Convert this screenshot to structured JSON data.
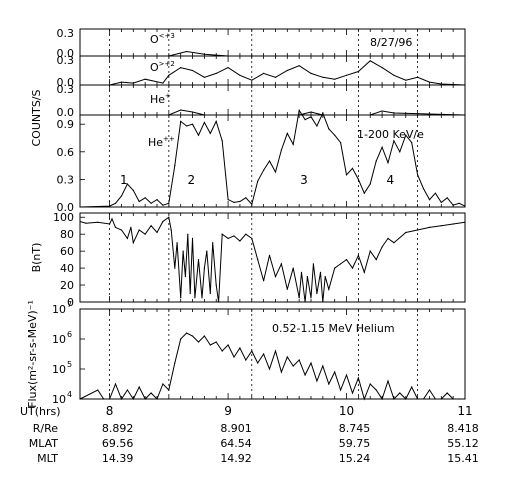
{
  "chart_data": {
    "type": "line",
    "date_label": "8/27/96",
    "x_axis": {
      "label": "UT(hrs)",
      "range": [
        7.75,
        11.0
      ],
      "ticks": [
        "8",
        "9",
        "10",
        "11"
      ],
      "tick_values": [
        8,
        9,
        10,
        11
      ]
    },
    "event_lines_ut": [
      8.0,
      8.5,
      9.2,
      10.1,
      10.6
    ],
    "panels": [
      {
        "id": "oxygen3",
        "species": "O",
        "species_sup": "<+3",
        "ylim": [
          0,
          0.3
        ],
        "y_ticks": [
          "0.3",
          "0.0"
        ],
        "series": [
          {
            "x": [
              7.75,
              8.5,
              8.65,
              8.8,
              9.0,
              11.0
            ],
            "y": [
              0,
              0,
              0.05,
              0.02,
              0,
              0
            ]
          }
        ]
      },
      {
        "id": "oxygen2",
        "species": "O",
        "species_sup": ">+2",
        "ylim": [
          0,
          0.3
        ],
        "y_ticks": [
          "0.3",
          "0.0"
        ],
        "series": [
          {
            "x": [
              7.75,
              8.0,
              8.1,
              8.2,
              8.3,
              8.45,
              8.5,
              8.6,
              8.7,
              8.8,
              8.9,
              9.0,
              9.1,
              9.2,
              9.3,
              9.4,
              9.5,
              9.6,
              9.7,
              9.8,
              9.9,
              10.0,
              10.1,
              10.2,
              10.3,
              10.4,
              10.5,
              10.6,
              10.7,
              10.8,
              11.0
            ],
            "y": [
              0,
              0,
              0.03,
              0.02,
              0.06,
              0.02,
              0.1,
              0.18,
              0.15,
              0.08,
              0.12,
              0.18,
              0.1,
              0.05,
              0.12,
              0.08,
              0.15,
              0.2,
              0.12,
              0.08,
              0.06,
              0.1,
              0.14,
              0.25,
              0.18,
              0.1,
              0.05,
              0.08,
              0.03,
              0.01,
              0
            ]
          }
        ]
      },
      {
        "id": "he1",
        "species": "He",
        "species_sup": "+",
        "ylim": [
          0,
          0.3
        ],
        "y_ticks": [
          "0.3",
          "0.0"
        ],
        "series": [
          {
            "x": [
              7.75,
              8.5,
              8.6,
              8.7,
              8.8,
              9.6,
              9.7,
              9.8,
              10.2,
              10.3,
              10.4,
              11.0
            ],
            "y": [
              0,
              0,
              0.05,
              0.03,
              0,
              0,
              0.03,
              0,
              0,
              0.04,
              0.02,
              0
            ]
          }
        ]
      },
      {
        "id": "he2",
        "species": "He",
        "species_sup": "++",
        "ylim": [
          0,
          1.0
        ],
        "y_ticks": [
          "0.9",
          "0.6",
          "0.3",
          "0.0"
        ],
        "y_tick_values": [
          0.9,
          0.6,
          0.3,
          0.0
        ],
        "energy_label": "1-200 KeV/e",
        "event_numbers": [
          "1",
          "2",
          "3",
          "4"
        ],
        "event_number_x": [
          8.12,
          8.69,
          9.64,
          10.37
        ],
        "series": [
          {
            "x": [
              7.75,
              8.0,
              8.05,
              8.1,
              8.15,
              8.2,
              8.25,
              8.3,
              8.35,
              8.4,
              8.45,
              8.5,
              8.55,
              8.6,
              8.65,
              8.7,
              8.75,
              8.8,
              8.85,
              8.9,
              8.95,
              9.0,
              9.05,
              9.1,
              9.15,
              9.2,
              9.25,
              9.3,
              9.35,
              9.4,
              9.45,
              9.5,
              9.55,
              9.6,
              9.65,
              9.7,
              9.75,
              9.8,
              9.85,
              9.9,
              9.95,
              10.0,
              10.05,
              10.1,
              10.15,
              10.2,
              10.25,
              10.3,
              10.35,
              10.4,
              10.45,
              10.5,
              10.55,
              10.6,
              10.65,
              10.7,
              10.75,
              10.8,
              10.85,
              10.9,
              10.95,
              11.0
            ],
            "y": [
              0,
              0.01,
              0.04,
              0.12,
              0.25,
              0.18,
              0.06,
              0.1,
              0.04,
              0.08,
              0.02,
              0.04,
              0.45,
              0.93,
              0.88,
              0.9,
              0.78,
              0.92,
              0.8,
              0.93,
              0.72,
              0.08,
              0.05,
              0.06,
              0.1,
              0.03,
              0.28,
              0.4,
              0.5,
              0.38,
              0.62,
              0.8,
              0.68,
              1.05,
              0.95,
              0.98,
              0.88,
              1.02,
              0.85,
              0.78,
              0.7,
              0.35,
              0.42,
              0.3,
              0.15,
              0.25,
              0.5,
              0.65,
              0.48,
              0.72,
              0.6,
              0.78,
              0.7,
              0.35,
              0.2,
              0.08,
              0.15,
              0.05,
              0.1,
              0.02,
              0.04,
              0.01
            ]
          }
        ]
      },
      {
        "id": "bfield",
        "ylabel": "B(nT)",
        "ylim": [
          0,
          105
        ],
        "y_ticks": [
          "100",
          "80",
          "60",
          "40",
          "20",
          "0"
        ],
        "y_tick_values": [
          100,
          80,
          60,
          40,
          20,
          0
        ],
        "series": [
          {
            "x": [
              7.75,
              7.8,
              7.9,
              8.0,
              8.02,
              8.05,
              8.1,
              8.15,
              8.18,
              8.2,
              8.25,
              8.3,
              8.35,
              8.4,
              8.45,
              8.5,
              8.52,
              8.55,
              8.57,
              8.6,
              8.62,
              8.64,
              8.66,
              8.68,
              8.7,
              8.72,
              8.75,
              8.78,
              8.8,
              8.82,
              8.85,
              8.87,
              8.9,
              8.92,
              8.95,
              9.0,
              9.05,
              9.1,
              9.15,
              9.2,
              9.25,
              9.3,
              9.35,
              9.4,
              9.45,
              9.5,
              9.55,
              9.6,
              9.62,
              9.65,
              9.67,
              9.7,
              9.72,
              9.75,
              9.78,
              9.8,
              9.82,
              9.85,
              9.9,
              9.95,
              10.0,
              10.05,
              10.1,
              10.15,
              10.2,
              10.25,
              10.3,
              10.35,
              10.4,
              10.5,
              10.6,
              10.7,
              10.8,
              10.9,
              11.0
            ],
            "y": [
              95,
              93,
              94,
              92,
              98,
              88,
              85,
              75,
              88,
              70,
              85,
              80,
              90,
              82,
              95,
              100,
              85,
              40,
              70,
              5,
              60,
              30,
              80,
              10,
              75,
              5,
              50,
              5,
              40,
              60,
              10,
              70,
              20,
              0,
              80,
              75,
              78,
              72,
              80,
              75,
              50,
              25,
              55,
              30,
              45,
              15,
              40,
              5,
              35,
              0,
              30,
              5,
              45,
              10,
              35,
              0,
              30,
              15,
              40,
              45,
              50,
              40,
              55,
              35,
              60,
              50,
              65,
              75,
              70,
              82,
              85,
              88,
              90,
              92,
              94
            ]
          }
        ]
      },
      {
        "id": "flux",
        "ylabel": "Flux(m²-sr-s-MeV)⁻¹",
        "y_scale": "log",
        "ylim": [
          4,
          7
        ],
        "y_ticks": [
          "10",
          "10",
          "10",
          "10"
        ],
        "y_tick_exps": [
          "7",
          "6",
          "5",
          "4"
        ],
        "y_tick_values": [
          7,
          6,
          5,
          4
        ],
        "energy_label": "0.52-1.15 MeV Helium",
        "series": [
          {
            "x": [
              7.75,
              7.9,
              7.95,
              8.0,
              8.05,
              8.1,
              8.15,
              8.2,
              8.25,
              8.3,
              8.35,
              8.4,
              8.45,
              8.5,
              8.55,
              8.6,
              8.65,
              8.7,
              8.75,
              8.8,
              8.85,
              8.9,
              8.95,
              9.0,
              9.05,
              9.1,
              9.15,
              9.2,
              9.25,
              9.3,
              9.35,
              9.4,
              9.45,
              9.5,
              9.55,
              9.6,
              9.65,
              9.7,
              9.75,
              9.8,
              9.85,
              9.9,
              9.95,
              10.0,
              10.05,
              10.1,
              10.15,
              10.2,
              10.25,
              10.3,
              10.35,
              10.4,
              10.45,
              10.5,
              10.55,
              10.6,
              10.65,
              10.7,
              10.75,
              10.8,
              10.85,
              10.9,
              10.95,
              11.0
            ],
            "y": [
              4,
              4.3,
              4,
              4,
              4.5,
              4,
              4.3,
              4,
              4.4,
              4,
              4.2,
              4,
              4.5,
              4.3,
              5.2,
              6.0,
              6.2,
              6.1,
              5.9,
              6.1,
              5.8,
              5.9,
              5.6,
              5.8,
              5.4,
              5.7,
              5.3,
              5.6,
              5.2,
              5.5,
              5.0,
              5.6,
              4.9,
              5.4,
              5.1,
              5.3,
              4.8,
              5.2,
              4.6,
              5.1,
              4.5,
              4.9,
              4.3,
              4.8,
              4.2,
              4.7,
              4.0,
              4.5,
              4.3,
              4.0,
              4.6,
              4.0,
              4.2,
              4.0,
              4.4,
              4.0,
              4.0,
              4.3,
              4.0,
              4.0,
              4.2,
              4.0,
              4.0,
              4.0
            ]
          }
        ]
      }
    ],
    "shared_ylabel": "COUNTS/S",
    "orbit_table": {
      "rows": [
        {
          "label": "R/Re",
          "values": [
            "8.892",
            "8.901",
            "8.745",
            "8.418"
          ]
        },
        {
          "label": "MLAT",
          "values": [
            "69.56",
            "64.54",
            "59.75",
            "55.12"
          ]
        },
        {
          "label": "MLT",
          "values": [
            "14.39",
            "14.92",
            "15.24",
            "15.41"
          ]
        }
      ]
    }
  }
}
